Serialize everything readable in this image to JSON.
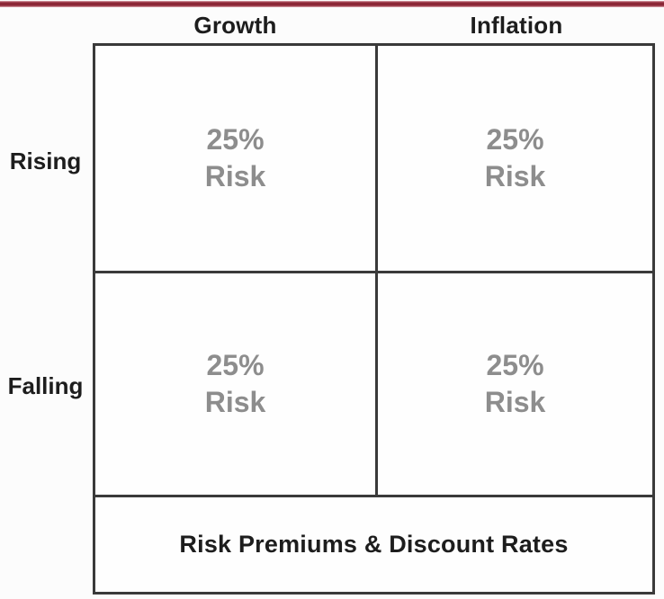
{
  "colors": {
    "top_rule": "#8c2737",
    "matrix_border": "#3a3a3a",
    "quadrant_text": "#8d8d8d",
    "heading_text": "#1d1d1d"
  },
  "matrix": {
    "column_headers": [
      "Growth",
      "Inflation"
    ],
    "row_headers": [
      "Rising",
      "Falling"
    ],
    "quadrants": [
      {
        "row": "Rising",
        "column": "Growth",
        "percent": "25%",
        "label": "Risk"
      },
      {
        "row": "Rising",
        "column": "Inflation",
        "percent": "25%",
        "label": "Risk"
      },
      {
        "row": "Falling",
        "column": "Growth",
        "percent": "25%",
        "label": "Risk"
      },
      {
        "row": "Falling",
        "column": "Inflation",
        "percent": "25%",
        "label": "Risk"
      }
    ],
    "footer": "Risk Premiums & Discount Rates"
  }
}
